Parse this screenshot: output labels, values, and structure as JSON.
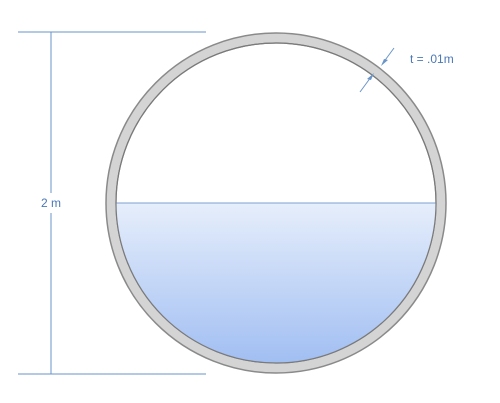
{
  "diagram": {
    "height_label": "2 m",
    "thickness_label": "t = .01m",
    "colors": {
      "dimension_line": "#6a95c8",
      "label_text": "#4a78b8",
      "shell_outer": "#8a8a8a",
      "shell_fill": "#d4d4d4",
      "shell_inner": "#7a7a7a",
      "water_top": "#e6eefb",
      "water_bottom": "#9fbdf2",
      "water_surface": "#7f9fd0"
    }
  }
}
